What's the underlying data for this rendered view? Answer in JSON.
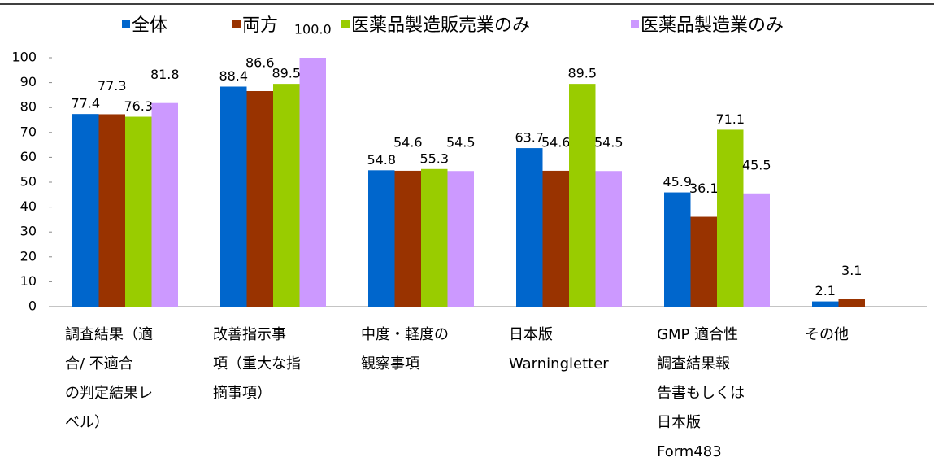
{
  "chart_data": {
    "type": "bar",
    "categories": [
      [
        "調査結果（適",
        "合/ 不適合",
        "の判定結果レ",
        "ベル）"
      ],
      [
        "改善指示事",
        "項（重大な指",
        "摘事項）"
      ],
      [
        "中度・軽度の",
        "観察事項"
      ],
      [
        "日本版",
        "Warningletter"
      ],
      [
        "GMP  適合性",
        "調査結果報",
        "告書もしくは",
        "日本版",
        "Form483"
      ],
      [
        "その他"
      ]
    ],
    "series": [
      {
        "name": "全体",
        "color": "#0066cc",
        "values": [
          77.4,
          88.4,
          54.8,
          63.7,
          45.9,
          2.1
        ]
      },
      {
        "name": "両方",
        "color": "#993300",
        "values": [
          77.3,
          86.6,
          54.6,
          54.6,
          36.1,
          3.1
        ]
      },
      {
        "name": "医薬品製造販売業のみ",
        "color": "#99cc00",
        "values": [
          76.3,
          89.5,
          55.3,
          89.5,
          71.1,
          null
        ]
      },
      {
        "name": "医薬品製造業のみ",
        "color": "#cc99ff",
        "values": [
          81.8,
          {
            "value": 100,
            "label": "100.0"
          },
          54.5,
          54.5,
          45.5,
          null
        ]
      }
    ],
    "ylim": [
      0,
      100
    ],
    "yticks": [
      0,
      10,
      20,
      30,
      40,
      50,
      60,
      70,
      80,
      90,
      100
    ],
    "grid": false,
    "legend": "top"
  }
}
